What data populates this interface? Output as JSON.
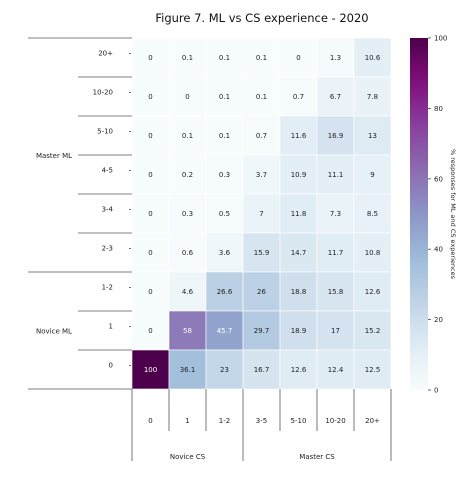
{
  "chart_data": {
    "type": "heatmap",
    "title": "Figure 7. ML vs CS experience - 2020",
    "rows": [
      "20+",
      "10-20",
      "5-10",
      "4-5",
      "3-4",
      "2-3",
      "1-2",
      "1",
      "0"
    ],
    "cols": [
      "0",
      "1",
      "1-2",
      "3-5",
      "5-10",
      "10-20",
      "20+"
    ],
    "values": [
      [
        0,
        0.1,
        0.1,
        0.1,
        0,
        1.3,
        10.6
      ],
      [
        0,
        0,
        0.1,
        0.1,
        0.7,
        6.7,
        7.8
      ],
      [
        0,
        0.1,
        0.1,
        0.7,
        11.6,
        16.9,
        13
      ],
      [
        0,
        0.2,
        0.3,
        3.7,
        10.9,
        11.1,
        9
      ],
      [
        0,
        0.3,
        0.5,
        7,
        11.8,
        7.3,
        8.5
      ],
      [
        0,
        0.6,
        3.6,
        15.9,
        14.7,
        11.7,
        10.8
      ],
      [
        0,
        4.6,
        26.6,
        26,
        18.8,
        15.8,
        12.6
      ],
      [
        0,
        58,
        45.7,
        29.7,
        18.9,
        17,
        15.2
      ],
      [
        100,
        36.1,
        23,
        16.7,
        12.6,
        12.4,
        12.5
      ]
    ],
    "row_groups": [
      {
        "label": "Master ML",
        "from": 0,
        "to": 5
      },
      {
        "label": "Novice ML",
        "from": 6,
        "to": 8
      }
    ],
    "col_groups": [
      {
        "label": "Novice CS",
        "from": 0,
        "to": 2
      },
      {
        "label": "Master CS",
        "from": 3,
        "to": 6
      }
    ],
    "colorbar": {
      "label": "% responses for ML and CS experiences",
      "range": [
        0,
        100
      ],
      "ticks": [
        0,
        20,
        40,
        60,
        80,
        100
      ],
      "colormap": "BuPu"
    }
  }
}
